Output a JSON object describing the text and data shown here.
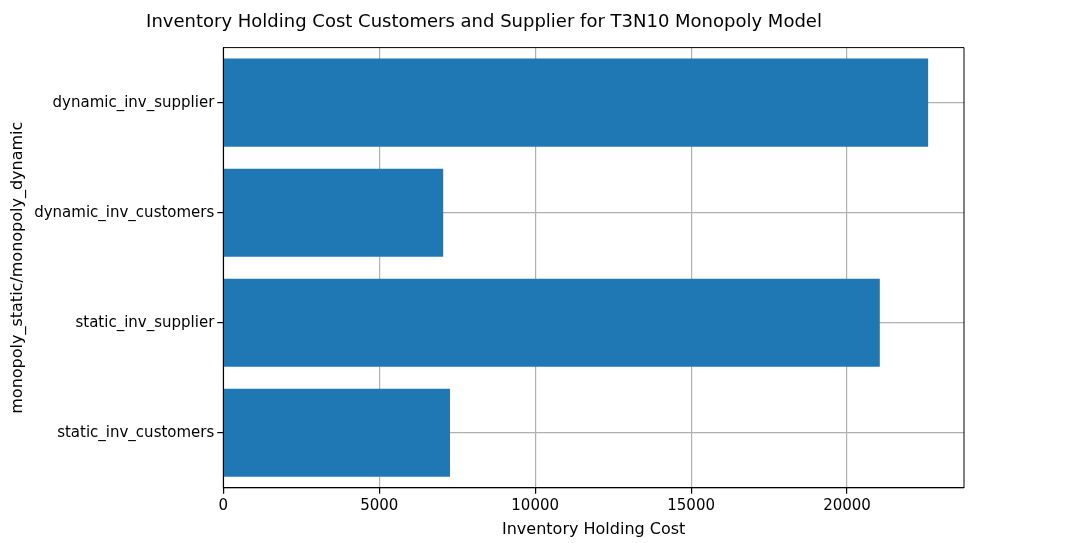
{
  "chart_data": {
    "type": "bar",
    "orientation": "horizontal",
    "title": "Inventory Holding Cost Customers and Supplier for T3N10 Monopoly Model",
    "xlabel": "Inventory Holding Cost",
    "ylabel": "monopoly_static/monopoly_dynamic",
    "categories": [
      "dynamic_inv_supplier",
      "dynamic_inv_customers",
      "static_inv_supplier",
      "static_inv_customers"
    ],
    "values": [
      22600,
      7050,
      21050,
      7270
    ],
    "color": "#1f77b4",
    "xlim": [
      0,
      23750
    ],
    "xticks": [
      0,
      5000,
      10000,
      15000,
      20000
    ],
    "grid": true
  }
}
